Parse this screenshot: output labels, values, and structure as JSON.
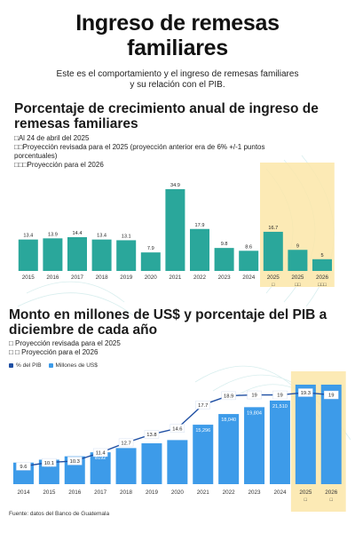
{
  "header": {
    "title_line1": "Ingreso de remesas",
    "title_line2": "familiares",
    "intro_line1": "Este es el comportamiento y el ingreso de remesas familiares",
    "intro_line2": "y su relación con el PIB."
  },
  "section1": {
    "heading_line1": "Porcentaje de crecimiento anual de ingreso de",
    "heading_line2": "remesas familiares",
    "notes": [
      "□Al 24 de abril del 2025",
      "□□Proyección revisada para el 2025 (proyección anterior era de 6% +/-1 puntos",
      "porcentuales)",
      "□□□Proyección para el 2026"
    ]
  },
  "section2": {
    "heading_line1": "Monto en millones de US$ y porcentaje del PIB a",
    "heading_line2": "diciembre de cada año",
    "notes": [
      "□ Proyección revisada para el 2025",
      "□ □ Proyección para el 2026"
    ],
    "legend_pib": "% del PIB",
    "legend_millones": "Millones de US$"
  },
  "source": "Fuente: datos del Banco de Guatemala",
  "colors": {
    "teal": "#2aa79b",
    "blue": "#3d9be9",
    "line": "#1f4fa3",
    "highlight": "#fbe6a8"
  },
  "chart_data": [
    {
      "type": "bar",
      "categories": [
        "2015",
        "2016",
        "2017",
        "2018",
        "2019",
        "2020",
        "2021",
        "2022",
        "2023",
        "2024",
        "2025",
        "2025",
        "2026"
      ],
      "category_marks": [
        "",
        "",
        "",
        "",
        "",
        "",
        "",
        "",
        "",
        "",
        "□",
        "□□",
        "□□□"
      ],
      "values": [
        13.4,
        13.9,
        14.4,
        13.4,
        13.1,
        7.9,
        34.9,
        17.9,
        9.8,
        8.6,
        16.7,
        9,
        5
      ],
      "labels": [
        "13.4",
        "13.9",
        "14.4",
        "13.4",
        "13.1",
        "7.9",
        "34.9",
        "17.9",
        "9.8",
        "8.6",
        "16.7",
        "9",
        "5"
      ],
      "highlight_from_index": 10,
      "ylim": [
        0,
        36
      ],
      "grid": false
    },
    {
      "type": "bar",
      "categories": [
        "2014",
        "2015",
        "2016",
        "2017",
        "2018",
        "2019",
        "2020",
        "2021",
        "2022",
        "2023",
        "2024",
        "2025",
        "2026"
      ],
      "category_marks": [
        "",
        "",
        "",
        "",
        "",
        "",
        "",
        "",
        "",
        "",
        "",
        "□",
        "□"
      ],
      "series": [
        {
          "name": "Millones de US$",
          "values": [
            5544,
            6285,
            7160,
            8192,
            9288,
            10508,
            11340,
            15296,
            18040,
            19804,
            21510,
            null,
            null
          ],
          "labels": [
            "",
            "6285",
            "7160",
            "8192",
            "",
            "",
            "",
            "15,296",
            "18,040",
            "19,804",
            "21,510",
            "",
            ""
          ]
        },
        {
          "name": "% del PIB",
          "type": "line",
          "values": [
            9.6,
            10.1,
            10.3,
            11.4,
            12.7,
            13.8,
            14.6,
            17.7,
            18.9,
            19,
            19,
            19.3,
            19
          ],
          "labels": [
            "9.6",
            "10.1",
            "10.3",
            "11.4",
            "12.7",
            "13.8",
            "14.6",
            "17.7",
            "18.9",
            "19",
            "19",
            "19.3",
            "19"
          ]
        }
      ],
      "highlight_from_index": 11,
      "grid": false
    }
  ]
}
